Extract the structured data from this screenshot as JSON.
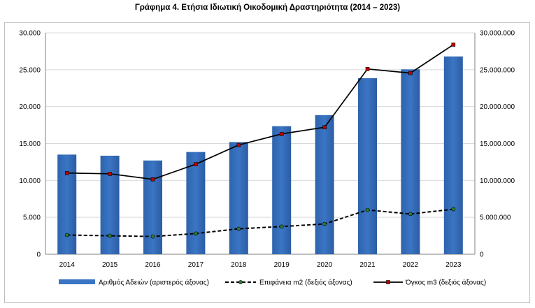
{
  "title": "Γράφημα 4. Ετήσια Ιδιωτική Οικοδομική Δραστηριότητα (2014 – 2023)",
  "colors": {
    "bar": "#3a75c4",
    "line_volume": "#000000",
    "marker_volume": "#c00000",
    "line_area": "#000000",
    "marker_area": "#2e7d32",
    "grid": "#d9d9d9"
  },
  "chart_data": {
    "type": "bar",
    "categories": [
      "2014",
      "2015",
      "2016",
      "2017",
      "2018",
      "2019",
      "2020",
      "2021",
      "2022",
      "2023"
    ],
    "series": [
      {
        "name": "Αριθμός Αδειών (αριστερός άξονας)",
        "kind": "bar",
        "axis": "left",
        "values": [
          13500,
          13350,
          12700,
          13850,
          15200,
          17350,
          18850,
          23850,
          25050,
          26800
        ]
      },
      {
        "name": "Επιφάνεια m2 (δεξιός άξονας)",
        "kind": "line-dashed",
        "axis": "right",
        "values": [
          2600000,
          2500000,
          2400000,
          2800000,
          3450000,
          3750000,
          4100000,
          6000000,
          5450000,
          6100000
        ]
      },
      {
        "name": "Όγκος m3 (δεξιός άξονας)",
        "kind": "line",
        "axis": "right",
        "values": [
          11000000,
          10900000,
          10150000,
          12200000,
          14800000,
          16300000,
          17200000,
          25100000,
          24550000,
          28400000
        ]
      }
    ],
    "ylim": [
      0,
      30000
    ],
    "y2lim": [
      0,
      30000000
    ],
    "yticks": [
      "0",
      "5.000",
      "10.000",
      "15.000",
      "20.000",
      "25.000",
      "30.000"
    ],
    "y2ticks": [
      "0",
      "5.000.000",
      "10.000.000",
      "15.000.000",
      "20.000.000",
      "25.000.000",
      "30.000.000"
    ],
    "grid": true,
    "legend_position": "bottom"
  }
}
